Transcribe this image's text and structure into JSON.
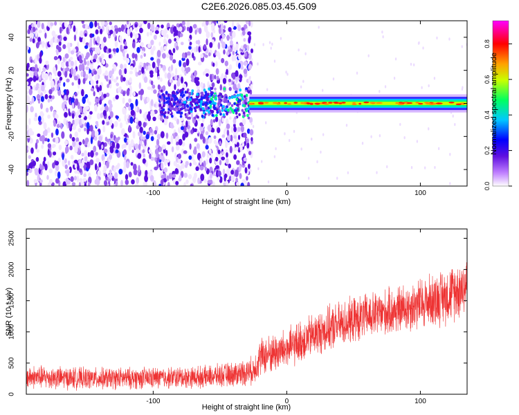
{
  "title": "C2E6.2026.085.03.45.G09",
  "chart_data": [
    {
      "type": "heatmap",
      "xlabel": "Height of straight line (km)",
      "ylabel": "Frequency (Hz)",
      "xlim": [
        -195,
        135
      ],
      "ylim": [
        -50,
        50
      ],
      "xticks": [
        -100,
        0,
        100
      ],
      "yticks": [
        -40,
        -20,
        0,
        20,
        40
      ],
      "colorbar": {
        "label": "Normalized spectral amplitude",
        "range": [
          0,
          0.93
        ],
        "ticks": [
          "0.0",
          "0.2",
          "0.4",
          "0.6",
          "0.8"
        ],
        "tick_values": [
          0.0,
          0.2,
          0.4,
          0.6,
          0.8
        ],
        "colors": [
          "#ffffff",
          "#8a2be2",
          "#0000ff",
          "#00ffff",
          "#00ff00",
          "#ffff00",
          "#ff8000",
          "#ff0000",
          "#ff00ff"
        ]
      },
      "features": {
        "noise_region_x": [
          -195,
          -28
        ],
        "burst_region_x": [
          -95,
          -28
        ],
        "carrier_start_x": -28,
        "carrier_frequency_hz": 0,
        "carrier_halfwidth_hz": 2.5
      }
    },
    {
      "type": "line",
      "xlabel": "Height of straight line (km)",
      "ylabel": "SNR (10 * v/v)",
      "xlim": [
        -195,
        135
      ],
      "ylim": [
        0,
        2650
      ],
      "xticks": [
        -100,
        0,
        100
      ],
      "yticks": [
        0,
        500,
        1000,
        1500,
        2000,
        2500
      ],
      "series": [
        {
          "name": "SNR",
          "color": "#ee3333",
          "x": [
            -195,
            -150,
            -100,
            -60,
            -40,
            -25,
            -20,
            0,
            20,
            40,
            60,
            80,
            100,
            120,
            135
          ],
          "mean": [
            280,
            250,
            260,
            280,
            320,
            380,
            600,
            720,
            950,
            1120,
            1250,
            1330,
            1450,
            1580,
            1760
          ],
          "spread": [
            220,
            200,
            200,
            200,
            230,
            260,
            350,
            380,
            400,
            420,
            420,
            440,
            480,
            520,
            560
          ]
        }
      ]
    }
  ]
}
